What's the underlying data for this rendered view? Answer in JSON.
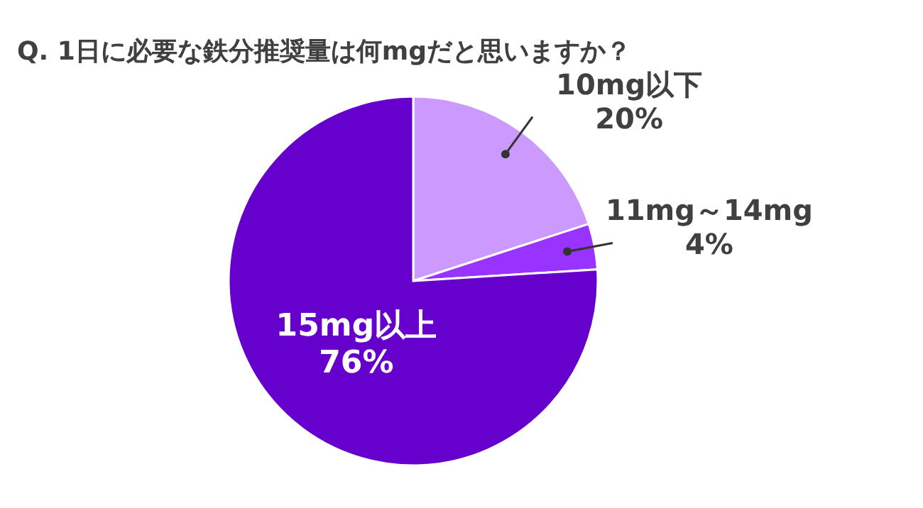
{
  "chart_data": {
    "type": "pie",
    "title": "Q.  1日に必要な鉄分推奨量は何mgだと思いますか？",
    "categories": [
      "10mg以下",
      "11mg～14mg",
      "15mg以上"
    ],
    "values": [
      20,
      4,
      76
    ],
    "value_labels": [
      "20%",
      "4%",
      "76%"
    ],
    "colors": [
      "#cc99ff",
      "#9933ff",
      "#6600cc"
    ]
  }
}
